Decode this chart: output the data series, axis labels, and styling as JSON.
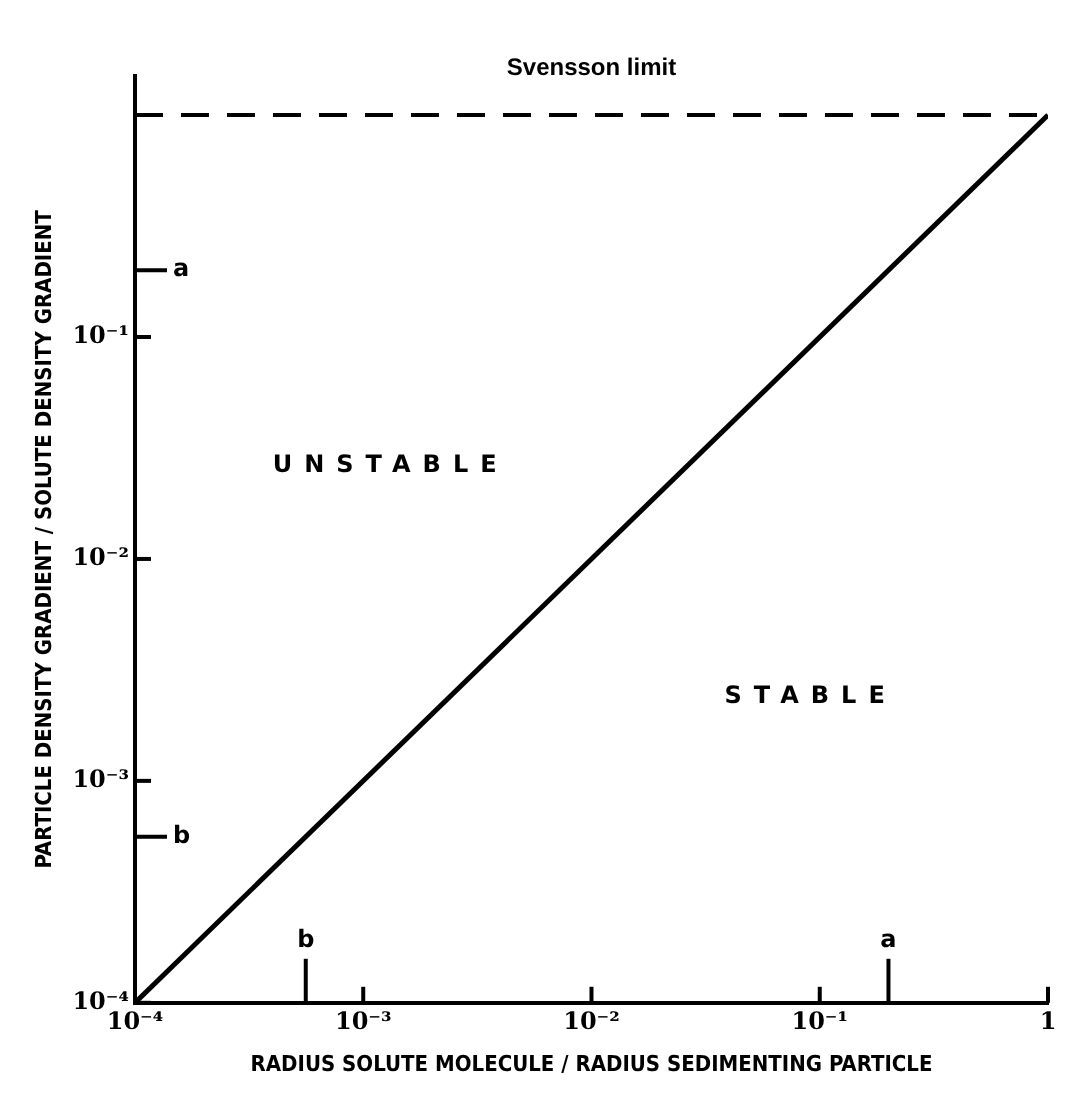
{
  "chart_data": {
    "type": "line",
    "xlabel": "RADIUS SOLUTE MOLECULE / RADIUS SEDIMENTING PARTICLE",
    "ylabel": "PARTICLE DENSITY GRADIENT / SOLUTE DENSITY GRADIENT",
    "log": "xy",
    "grid": false,
    "legend": false,
    "marker": "none",
    "xlim": [
      0.0001,
      1
    ],
    "xticks": [
      {
        "value": 0.0001,
        "label": "10⁻⁴"
      },
      {
        "value": 0.001,
        "label": "10⁻³"
      },
      {
        "value": 0.01,
        "label": "10⁻²"
      },
      {
        "value": 0.1,
        "label": "10⁻¹"
      },
      1
    ],
    "ylim": [
      0.0001,
      1.5
    ],
    "yticks": [
      {
        "value": 0.0001,
        "label": "10⁻⁴"
      },
      {
        "value": 0.001,
        "label": "10⁻³"
      },
      {
        "value": 0.01,
        "label": "10⁻²"
      },
      {
        "value": 0.1,
        "label": "10⁻¹"
      }
    ],
    "series": [
      {
        "x": [
          0.0001,
          1
        ],
        "values": [
          0.0001,
          1
        ],
        "color": "#000000",
        "line_style": "solid"
      }
    ],
    "ref_lines": [
      {
        "axis": "y",
        "value": 1,
        "label": "Svensson limit",
        "line_style": "dashed",
        "color": "#000000"
      },
      {
        "axis": "y",
        "value": 0.2,
        "label": "a"
      },
      {
        "axis": "y",
        "value": 0.00056,
        "label": "b"
      },
      {
        "axis": "x",
        "value": 0.00056,
        "label": "b"
      },
      {
        "axis": "x",
        "value": 0.2,
        "label": "a"
      }
    ],
    "annotations": [
      "UNSTABLE",
      "STABLE"
    ]
  }
}
